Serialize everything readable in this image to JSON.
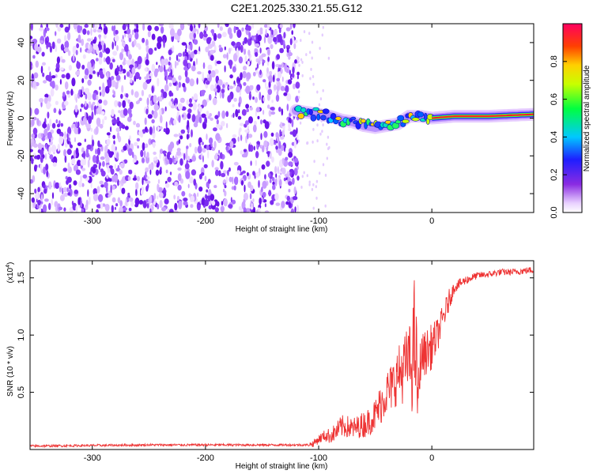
{
  "title": "C2E1.2025.330.21.55.G12",
  "chart_data": [
    {
      "type": "heatmap",
      "xlabel": "Height of straight line (km)",
      "ylabel": "Frequency (Hz)",
      "xlim": [
        -355,
        90
      ],
      "ylim": [
        -50,
        50
      ],
      "xticks": [
        -300,
        -200,
        -100,
        0
      ],
      "yticks": [
        -40,
        -20,
        0,
        20,
        40
      ],
      "noise_region_x": [
        -355,
        -118
      ],
      "signal_track": {
        "x": [
          -120,
          -110,
          -100,
          -90,
          -80,
          -70,
          -60,
          -50,
          -40,
          -30,
          -20,
          -10,
          0,
          20,
          50,
          90
        ],
        "freq": [
          4,
          3,
          2,
          1,
          -1,
          -2,
          -4,
          -5,
          -4,
          -3,
          1,
          1,
          0,
          1,
          1,
          2
        ]
      },
      "colorbar": {
        "label": "Normalized spectral amplitude",
        "range": [
          0.0,
          1.0
        ],
        "ticks": [
          "0.0",
          "0.2",
          "0.4",
          "0.6",
          "0.8"
        ],
        "ticks_values": [
          0.0,
          0.2,
          0.4,
          0.6,
          0.8
        ]
      }
    },
    {
      "type": "line",
      "xlabel": "Height of straight line (km)",
      "ylabel": "SNR (10 * v/v)",
      "scale_label": "(x10",
      "scale_exp": "4",
      "scale_close": ")",
      "xlim": [
        -355,
        90
      ],
      "ylim": [
        0,
        1.65
      ],
      "xticks": [
        -300,
        -200,
        -100,
        0
      ],
      "yticks": [
        0.5,
        1.0,
        1.5
      ],
      "ytick_labels": [
        "0.5",
        "1.0",
        "1.5"
      ],
      "series": [
        {
          "name": "SNR",
          "color": "#ee3333",
          "x": [
            -355,
            -250,
            -110,
            -105,
            -100,
            -95,
            -90,
            -85,
            -80,
            -75,
            -70,
            -65,
            -60,
            -55,
            -50,
            -45,
            -40,
            -35,
            -30,
            -25,
            -20,
            -18,
            -15,
            -12,
            -10,
            -5,
            0,
            5,
            10,
            15,
            20,
            30,
            40,
            50,
            60,
            70,
            80,
            90
          ],
          "y": [
            0.03,
            0.04,
            0.04,
            0.05,
            0.09,
            0.12,
            0.12,
            0.15,
            0.2,
            0.2,
            0.18,
            0.2,
            0.22,
            0.25,
            0.3,
            0.4,
            0.5,
            0.55,
            0.65,
            0.7,
            0.8,
            0.7,
            1.0,
            0.4,
            0.8,
            0.85,
            0.9,
            1.0,
            1.15,
            1.3,
            1.42,
            1.48,
            1.52,
            1.53,
            1.55,
            1.55,
            1.56,
            1.57
          ],
          "noise": [
            0.01,
            0.01,
            0.01,
            0.03,
            0.04,
            0.05,
            0.07,
            0.08,
            0.1,
            0.1,
            0.1,
            0.1,
            0.12,
            0.12,
            0.15,
            0.18,
            0.2,
            0.22,
            0.25,
            0.3,
            0.3,
            0.4,
            0.6,
            0.3,
            0.2,
            0.2,
            0.2,
            0.15,
            0.12,
            0.1,
            0.05,
            0.04,
            0.03,
            0.03,
            0.03,
            0.03,
            0.03,
            0.03
          ]
        }
      ]
    }
  ]
}
